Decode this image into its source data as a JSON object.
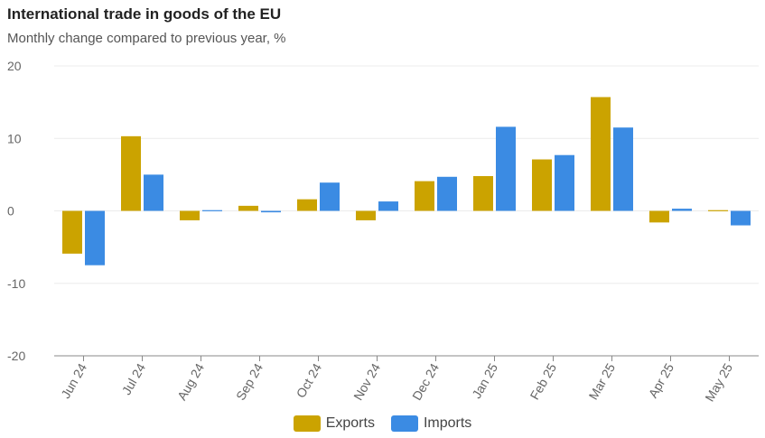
{
  "chart_data": {
    "type": "bar",
    "title": "International trade in goods of the EU",
    "subtitle": "Monthly change compared to previous year, %",
    "categories": [
      "Jun 24",
      "Jul 24",
      "Aug 24",
      "Sep 24",
      "Oct 24",
      "Nov 24",
      "Dec 24",
      "Jan 25",
      "Feb 25",
      "Mar 25",
      "Apr 25",
      "May 25"
    ],
    "series": [
      {
        "name": "Exports",
        "color": "#CBA300",
        "values": [
          -5.9,
          10.3,
          -1.3,
          0.7,
          1.6,
          -1.3,
          4.1,
          4.8,
          7.1,
          15.7,
          -1.6,
          0.1
        ]
      },
      {
        "name": "Imports",
        "color": "#3B8BE3",
        "values": [
          -7.5,
          5.0,
          0.1,
          -0.2,
          3.9,
          1.3,
          4.7,
          11.6,
          7.7,
          11.5,
          0.3,
          -2.0
        ]
      }
    ],
    "ylim": [
      -20,
      20
    ],
    "yticks": [
      20,
      10,
      0,
      -10,
      -20
    ],
    "grid": true,
    "legend": "bottom-center"
  }
}
